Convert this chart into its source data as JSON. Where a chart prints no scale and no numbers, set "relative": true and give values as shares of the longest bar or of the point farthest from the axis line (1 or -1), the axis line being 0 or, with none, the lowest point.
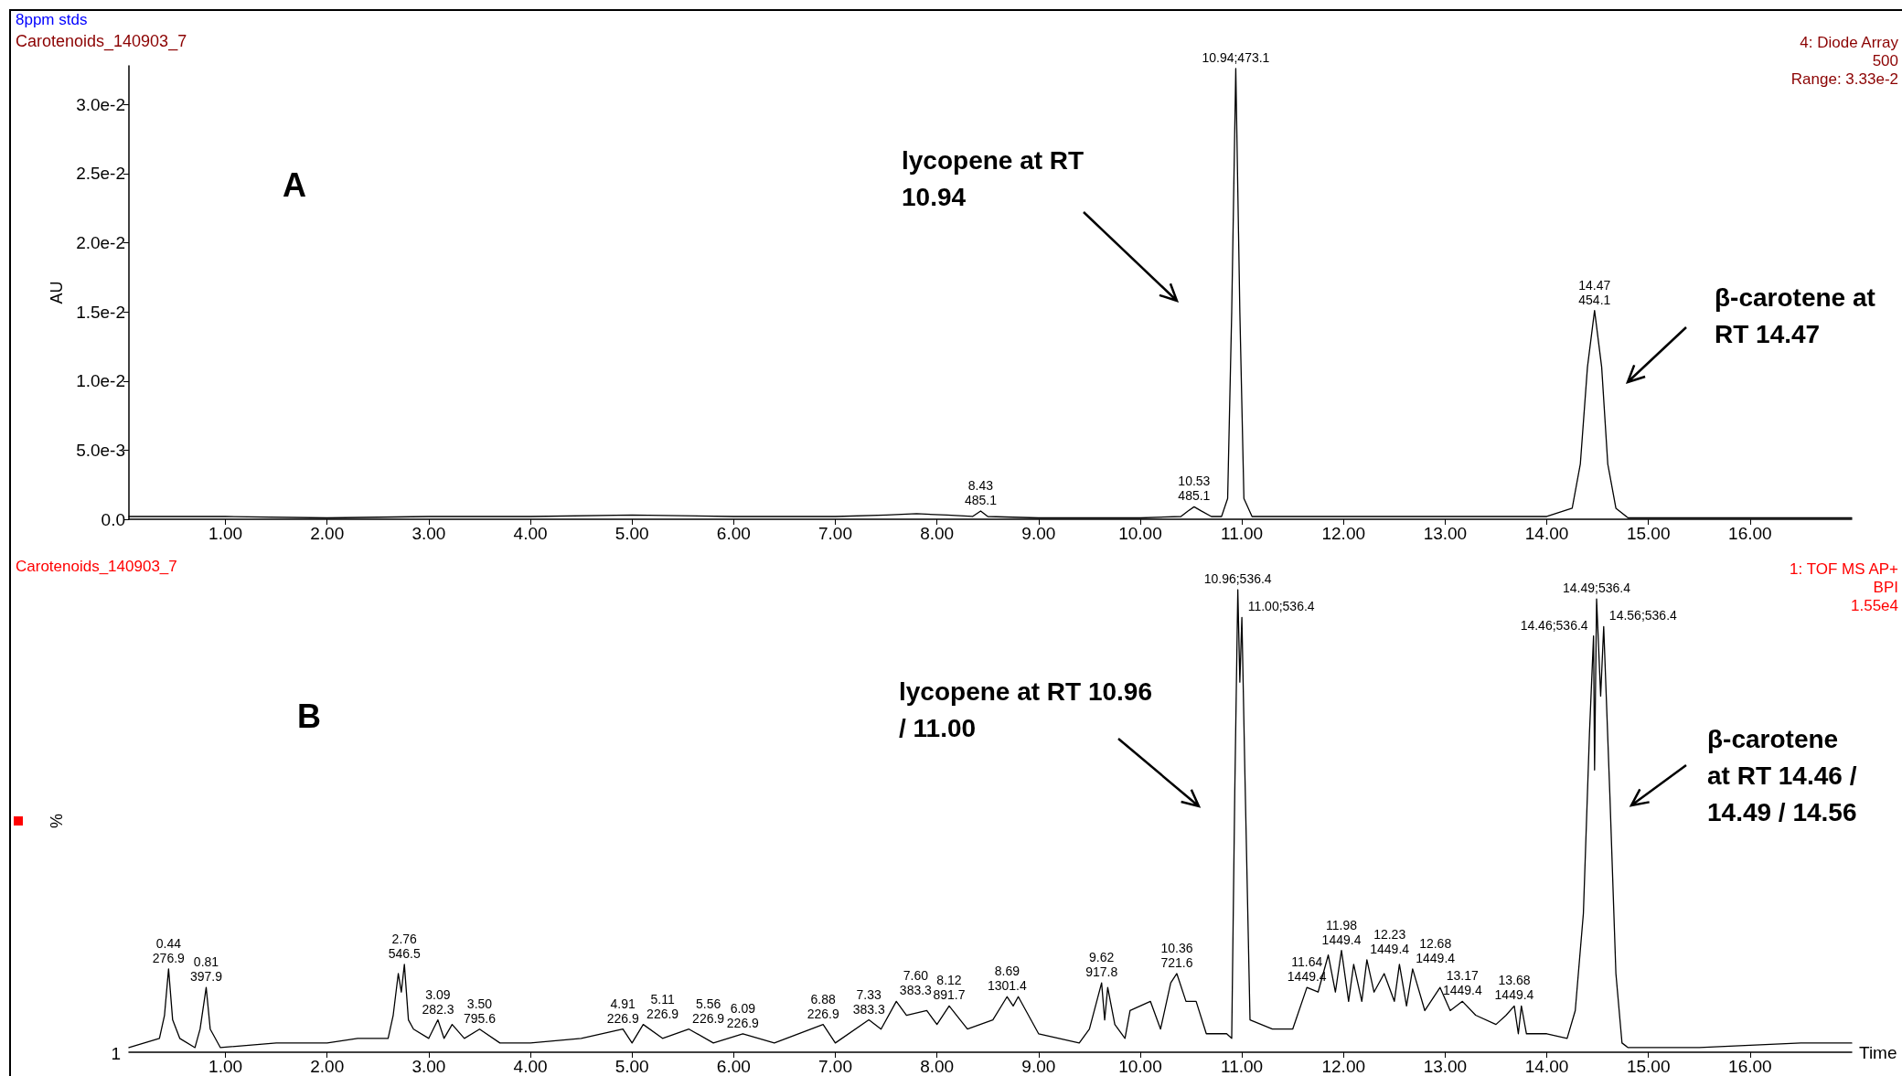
{
  "chart_data": [
    {
      "type": "line",
      "title": "8ppm stds",
      "subtitle": "Carotenoids_140903_7",
      "ylabel": "AU",
      "xlim": [
        0.05,
        17.0
      ],
      "xticks": [
        {
          "value": 1,
          "label": "1.00"
        },
        {
          "value": 2,
          "label": "2.00"
        },
        {
          "value": 3,
          "label": "3.00"
        },
        {
          "value": 4,
          "label": "4.00"
        },
        {
          "value": 5,
          "label": "5.00"
        },
        {
          "value": 6,
          "label": "6.00"
        },
        {
          "value": 7,
          "label": "7.00"
        },
        {
          "value": 8,
          "label": "8.00"
        },
        {
          "value": 9,
          "label": "9.00"
        },
        {
          "value": 10,
          "label": "10.00"
        },
        {
          "value": 11,
          "label": "11.00"
        },
        {
          "value": 12,
          "label": "12.00"
        },
        {
          "value": 13,
          "label": "13.00"
        },
        {
          "value": 14,
          "label": "14.00"
        },
        {
          "value": 15,
          "label": "15.00"
        },
        {
          "value": 16,
          "label": "16.00"
        }
      ],
      "ylim": [
        0,
        0.0328
      ],
      "yticks": [
        {
          "value": 0,
          "label": "0.0"
        },
        {
          "value": 0.005,
          "label": "5.0e-3"
        },
        {
          "value": 0.01,
          "label": "1.0e-2"
        },
        {
          "value": 0.015,
          "label": "1.5e-2"
        },
        {
          "value": 0.02,
          "label": "2.0e-2"
        },
        {
          "value": 0.025,
          "label": "2.5e-2"
        },
        {
          "value": 0.03,
          "label": "3.0e-2"
        }
      ],
      "marker": "none",
      "series": [
        {
          "color": "#000000",
          "x": [
            0.05,
            1,
            2,
            3,
            4,
            5,
            6,
            7,
            7.5,
            7.8,
            8.1,
            8.35,
            8.43,
            8.5,
            9,
            9.5,
            10,
            10.4,
            10.47,
            10.53,
            10.6,
            10.7,
            10.8,
            10.86,
            10.9,
            10.94,
            10.98,
            11.02,
            11.1,
            12,
            13,
            14,
            14.25,
            14.33,
            14.4,
            14.47,
            14.54,
            14.6,
            14.68,
            14.8,
            15,
            16,
            17
          ],
          "values": [
            0.0002,
            0.0002,
            0.0001,
            0.0002,
            0.0002,
            0.0003,
            0.0002,
            0.0002,
            0.0003,
            0.0004,
            0.0003,
            0.0002,
            0.0006,
            0.0002,
            0.0001,
            0.0001,
            0.0001,
            0.0002,
            0.0006,
            0.0009,
            0.0006,
            0.0002,
            0.0002,
            0.0015,
            0.015,
            0.0326,
            0.015,
            0.0015,
            0.0002,
            0.0002,
            0.0002,
            0.0002,
            0.0008,
            0.004,
            0.011,
            0.0151,
            0.011,
            0.004,
            0.0008,
            0.0001,
            0.0001,
            0.0001,
            0.0001
          ]
        }
      ],
      "annotations": [
        "A",
        "lycopene at RT\n10.94",
        "β-carotene at\nRT 14.47",
        "4: Diode Array\n500\nRange: 3.33e-2",
        {
          "text": "8.43\n485.1",
          "x": 8.43,
          "y": 0.0006
        },
        {
          "text": "10.53\n485.1",
          "x": 10.53,
          "y": 0.0009
        },
        {
          "text": "10.94;473.1",
          "x": 10.94,
          "y": 0.0326
        },
        {
          "text": "14.47\n454.1",
          "x": 14.47,
          "y": 0.0151
        }
      ]
    },
    {
      "type": "line",
      "title": "Carotenoids_140903_7",
      "ylabel": "%",
      "xlabel": "Time",
      "relative": true,
      "xlim": [
        0.05,
        17.0
      ],
      "xticks": [
        {
          "value": 1,
          "label": "1.00"
        },
        {
          "value": 2,
          "label": "2.00"
        },
        {
          "value": 3,
          "label": "3.00"
        },
        {
          "value": 4,
          "label": "4.00"
        },
        {
          "value": 5,
          "label": "5.00"
        },
        {
          "value": 6,
          "label": "6.00"
        },
        {
          "value": 7,
          "label": "7.00"
        },
        {
          "value": 8,
          "label": "8.00"
        },
        {
          "value": 9,
          "label": "9.00"
        },
        {
          "value": 10,
          "label": "10.00"
        },
        {
          "value": 11,
          "label": "11.00"
        },
        {
          "value": 12,
          "label": "12.00"
        },
        {
          "value": 13,
          "label": "13.00"
        },
        {
          "value": 14,
          "label": "14.00"
        },
        {
          "value": 15,
          "label": "15.00"
        },
        {
          "value": 16,
          "label": "16.00"
        }
      ],
      "marker": "none",
      "series": [
        {
          "color": "#000000",
          "x": [
            0.05,
            0.2,
            0.35,
            0.4,
            0.44,
            0.48,
            0.55,
            0.7,
            0.75,
            0.81,
            0.85,
            0.95,
            1.5,
            2.0,
            2.3,
            2.6,
            2.65,
            2.7,
            2.73,
            2.76,
            2.8,
            2.85,
            3.0,
            3.09,
            3.15,
            3.23,
            3.35,
            3.5,
            3.7,
            4.0,
            4.5,
            4.91,
            5.0,
            5.11,
            5.3,
            5.56,
            5.8,
            6.09,
            6.4,
            6.88,
            7.0,
            7.33,
            7.45,
            7.6,
            7.7,
            7.9,
            8.0,
            8.12,
            8.3,
            8.55,
            8.69,
            8.75,
            8.8,
            9.0,
            9.4,
            9.5,
            9.62,
            9.65,
            9.68,
            9.75,
            9.85,
            9.9,
            10.1,
            10.2,
            10.3,
            10.36,
            10.45,
            10.55,
            10.65,
            10.85,
            10.9,
            10.93,
            10.96,
            10.98,
            11.0,
            11.03,
            11.08,
            11.3,
            11.5,
            11.64,
            11.75,
            11.85,
            11.92,
            11.98,
            12.05,
            12.1,
            12.18,
            12.23,
            12.3,
            12.4,
            12.5,
            12.55,
            12.62,
            12.68,
            12.8,
            12.95,
            13.05,
            13.17,
            13.3,
            13.5,
            13.6,
            13.68,
            13.72,
            13.75,
            13.8,
            14.0,
            14.2,
            14.28,
            14.36,
            14.42,
            14.46,
            14.47,
            14.49,
            14.53,
            14.56,
            14.62,
            14.68,
            14.74,
            14.8,
            15.5,
            16.0,
            16.5,
            17.0
          ],
          "values": [
            0.01,
            0.02,
            0.03,
            0.08,
            0.18,
            0.07,
            0.03,
            0.01,
            0.05,
            0.14,
            0.05,
            0.01,
            0.02,
            0.02,
            0.03,
            0.03,
            0.08,
            0.17,
            0.13,
            0.19,
            0.07,
            0.05,
            0.03,
            0.07,
            0.03,
            0.06,
            0.03,
            0.05,
            0.02,
            0.02,
            0.03,
            0.05,
            0.02,
            0.06,
            0.03,
            0.05,
            0.02,
            0.04,
            0.02,
            0.06,
            0.02,
            0.07,
            0.05,
            0.11,
            0.08,
            0.09,
            0.06,
            0.1,
            0.05,
            0.07,
            0.12,
            0.1,
            0.12,
            0.04,
            0.02,
            0.05,
            0.15,
            0.07,
            0.14,
            0.06,
            0.03,
            0.09,
            0.11,
            0.05,
            0.15,
            0.17,
            0.11,
            0.11,
            0.04,
            0.04,
            0.03,
            0.56,
            1.0,
            0.8,
            0.94,
            0.6,
            0.07,
            0.05,
            0.05,
            0.14,
            0.13,
            0.21,
            0.13,
            0.22,
            0.11,
            0.19,
            0.11,
            0.2,
            0.13,
            0.17,
            0.11,
            0.19,
            0.1,
            0.18,
            0.09,
            0.14,
            0.09,
            0.11,
            0.08,
            0.06,
            0.08,
            0.1,
            0.04,
            0.1,
            0.04,
            0.04,
            0.03,
            0.09,
            0.3,
            0.69,
            0.9,
            0.61,
            0.98,
            0.77,
            0.92,
            0.56,
            0.17,
            0.02,
            0.01,
            0.01,
            0.015,
            0.02,
            0.02
          ]
        }
      ],
      "annotations": [
        "B",
        "lycopene at RT 10.96\n/ 11.00",
        "β-carotene\nat RT 14.46 /\n14.49 / 14.56",
        "1: TOF MS AP+\nBPI\n1.55e4",
        "1",
        {
          "text": "0.44\n276.9",
          "x": 0.44,
          "y": 0.18
        },
        {
          "text": "0.81\n397.9",
          "x": 0.81,
          "y": 0.14
        },
        {
          "text": "2.76\n546.5",
          "x": 2.76,
          "y": 0.19
        },
        {
          "text": "3.09\n282.3",
          "x": 3.09,
          "y": 0.07
        },
        {
          "text": "3.50\n795.6",
          "x": 3.5,
          "y": 0.05
        },
        {
          "text": "4.91\n226.9",
          "x": 4.91,
          "y": 0.05
        },
        {
          "text": "5.11\n226.9",
          "x": 5.11,
          "y": 0.06
        },
        {
          "text": "5.56\n226.9",
          "x": 5.56,
          "y": 0.05
        },
        {
          "text": "6.09\n226.9",
          "x": 6.09,
          "y": 0.04
        },
        {
          "text": "6.88\n226.9",
          "x": 6.88,
          "y": 0.06
        },
        {
          "text": "7.33\n383.3",
          "x": 7.33,
          "y": 0.07
        },
        {
          "text": "7.60\n383.3",
          "x": 7.6,
          "y": 0.11
        },
        {
          "text": "8.12\n891.7",
          "x": 8.12,
          "y": 0.1
        },
        {
          "text": "8.69\n1301.4",
          "x": 8.69,
          "y": 0.12
        },
        {
          "text": "9.62\n917.8",
          "x": 9.62,
          "y": 0.15
        },
        {
          "text": "10.36\n721.6",
          "x": 10.36,
          "y": 0.17
        },
        {
          "text": "10.96;536.4",
          "x": 10.96,
          "y": 1.0
        },
        {
          "text": "11.00;536.4",
          "x": 11.0,
          "y": 0.94
        },
        {
          "text": "11.64\n1449.4",
          "x": 11.64,
          "y": 0.14
        },
        {
          "text": "11.98\n1449.4",
          "x": 11.98,
          "y": 0.22
        },
        {
          "text": "12.23\n1449.4",
          "x": 12.23,
          "y": 0.2
        },
        {
          "text": "12.68\n1449.4",
          "x": 12.68,
          "y": 0.18
        },
        {
          "text": "13.17\n1449.4",
          "x": 13.17,
          "y": 0.11
        },
        {
          "text": "13.68\n1449.4",
          "x": 13.68,
          "y": 0.1
        },
        {
          "text": "14.46;536.4",
          "x": 14.46,
          "y": 0.9
        },
        {
          "text": "14.49;536.4",
          "x": 14.49,
          "y": 0.98
        },
        {
          "text": "14.56;536.4",
          "x": 14.56,
          "y": 0.92
        }
      ]
    }
  ]
}
